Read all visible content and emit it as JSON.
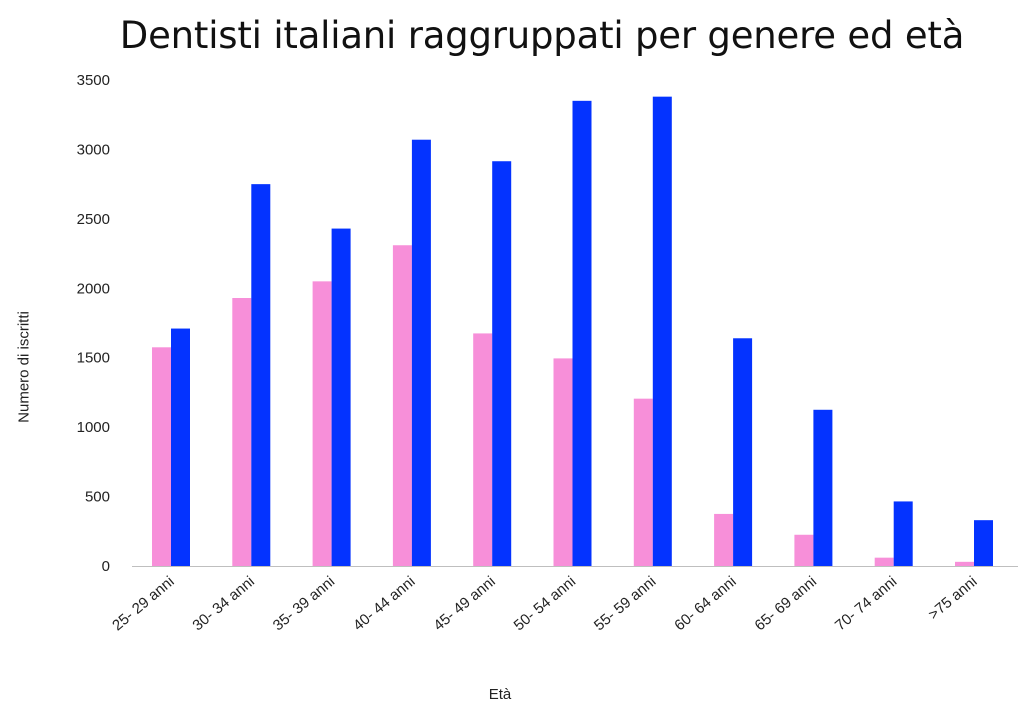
{
  "chart_data": {
    "type": "bar",
    "title": "Dentisti italiani raggruppati per genere ed età",
    "xlabel": "Età",
    "ylabel": "Numero di iscritti",
    "ylim": [
      0,
      3500
    ],
    "yticks": [
      0,
      500,
      1000,
      1500,
      2000,
      2500,
      3000,
      3500
    ],
    "grid": false,
    "legend": "none",
    "categories": [
      "25- 29 anni",
      "30- 34 anni",
      "35- 39 anni",
      "40- 44 anni",
      "45- 49 anni",
      "50- 54 anni",
      "55- 59 anni",
      "60- 64 anni",
      "65- 69 anni",
      "70- 74 anni",
      ">75 anni"
    ],
    "series": [
      {
        "color": "#f78fd9",
        "values": [
          1575,
          1930,
          2050,
          2310,
          1675,
          1495,
          1205,
          375,
          225,
          60,
          30
        ]
      },
      {
        "color": "#0433ff",
        "values": [
          1710,
          2750,
          2430,
          3070,
          2915,
          3350,
          3380,
          1640,
          1125,
          465,
          330
        ]
      }
    ]
  }
}
